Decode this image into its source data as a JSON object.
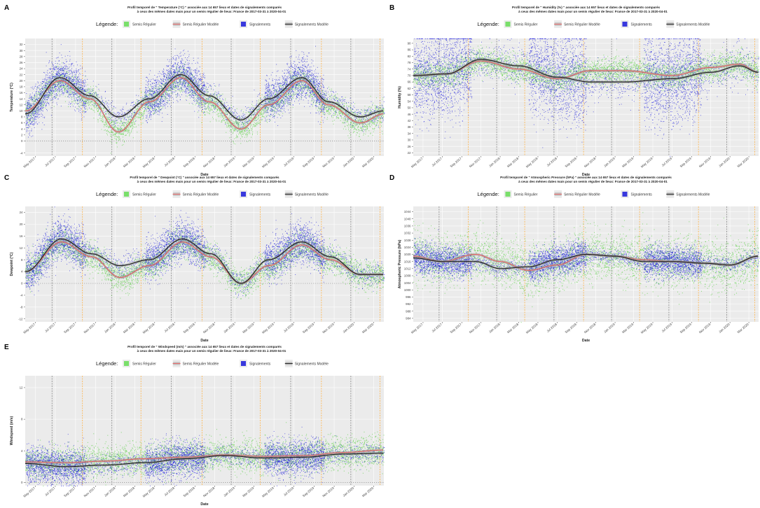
{
  "legend": {
    "title": "Légende:",
    "items": [
      {
        "label": "Semis Régulier",
        "color": "#66dd55"
      },
      {
        "label": "Semis Régulier Modèle",
        "color": "#e06666"
      },
      {
        "label": "Signalements",
        "color": "#1a1adb"
      },
      {
        "label": "Signalements Modèle",
        "color": "#222222"
      }
    ]
  },
  "axis_common": {
    "xlabel": "Date",
    "x_ticks": [
      "May 2017",
      "Jul 2017",
      "Sep 2017",
      "Nov 2017",
      "Jan 2018",
      "Mar 2018",
      "May 2018",
      "Jul 2018",
      "Sep 2018",
      "Nov 2018",
      "Jan 2019",
      "Mar 2019",
      "May 2019",
      "Jul 2019",
      "Sep 2019",
      "Nov 2019",
      "Jan 2020",
      "Mar 2020"
    ],
    "x_range": [
      "2017-03-31",
      "2020-04-01"
    ]
  },
  "chart_data": [
    {
      "panel": "A",
      "type": "scatter",
      "title": "Profil temporel de \" Temperature (°C) \" associée aux 14 657 lieux et dates de signalements comparés",
      "subtitle": "à ceux des mêmes dates mais pour un semis régulier de lieux: France de 2017-03-31 à 2020-04-01",
      "ylabel": "Temperature (°C)",
      "ylim": [
        -5,
        34
      ],
      "y_ticks": [
        -4,
        0,
        2,
        4,
        6,
        8,
        10,
        12,
        14,
        16,
        18,
        20,
        22,
        24,
        26,
        28,
        30,
        32
      ],
      "series": [
        {
          "name": "Semis Régulier Modèle",
          "x": [
            "2017-04-01",
            "2017-07-15",
            "2017-10-15",
            "2018-01-10",
            "2018-04-15",
            "2018-07-20",
            "2018-10-15",
            "2019-01-20",
            "2019-04-15",
            "2019-07-25",
            "2019-10-15",
            "2020-01-20",
            "2020-04-01"
          ],
          "y": [
            10,
            20,
            14,
            3,
            13,
            21,
            13,
            4,
            12,
            20,
            12,
            6,
            9
          ]
        },
        {
          "name": "Signalements Modèle",
          "x": [
            "2017-04-01",
            "2017-07-15",
            "2017-10-15",
            "2018-01-10",
            "2018-04-15",
            "2018-07-20",
            "2018-10-15",
            "2019-01-20",
            "2019-04-15",
            "2019-07-25",
            "2019-10-15",
            "2020-01-20",
            "2020-04-01"
          ],
          "y": [
            9,
            21,
            15,
            8,
            14,
            22,
            15,
            7,
            14,
            21,
            13,
            8,
            10
          ]
        }
      ]
    },
    {
      "panel": "B",
      "type": "scatter",
      "title": "Profil temporel de \" Humidity (%) \" associée aux 14 657 lieux et dates de signalements comparés",
      "subtitle": "à ceux des mêmes dates mais pour un semis régulier de lieux: France de 2017-03-31 à 2020-04-01",
      "ylabel": "Humidity (%)",
      "ylim": [
        20,
        93
      ],
      "y_ticks": [
        22,
        26,
        30,
        34,
        38,
        42,
        46,
        50,
        54,
        58,
        62,
        66,
        70,
        74,
        78,
        82,
        86,
        90
      ],
      "series": [
        {
          "name": "Semis Régulier Modèle",
          "x": [
            "2017-04-01",
            "2017-07-15",
            "2017-11-01",
            "2018-03-01",
            "2018-07-01",
            "2018-10-15",
            "2019-02-01",
            "2019-07-01",
            "2019-11-01",
            "2020-02-01",
            "2020-04-01"
          ],
          "y": [
            70,
            71,
            79,
            74,
            68,
            73,
            73,
            70,
            75,
            77,
            72
          ]
        },
        {
          "name": "Signalements Modèle",
          "x": [
            "2017-04-01",
            "2017-07-15",
            "2017-11-01",
            "2018-03-01",
            "2018-07-01",
            "2018-10-15",
            "2019-02-01",
            "2019-07-01",
            "2019-11-01",
            "2020-02-01",
            "2020-04-01"
          ],
          "y": [
            70,
            71,
            80,
            76,
            69,
            66,
            66,
            68,
            72,
            76,
            72
          ]
        }
      ]
    },
    {
      "panel": "C",
      "type": "scatter",
      "title": "Profil temporel de \" Dewpoint (°C) \" associée aux 14 657 lieux et dates de signalements comparés",
      "subtitle": "à ceux des mêmes dates mais pour un semis régulier de lieux: France de 2017-03-31 à 2020-04-01",
      "ylabel": "Dewpoint (°C)",
      "ylim": [
        -13,
        26
      ],
      "y_ticks": [
        -12,
        -8,
        -4,
        0,
        4,
        8,
        12,
        16,
        20,
        24
      ],
      "series": [
        {
          "name": "Semis Régulier Modèle",
          "x": [
            "2017-04-01",
            "2017-07-20",
            "2017-10-20",
            "2018-01-15",
            "2018-04-15",
            "2018-07-25",
            "2018-10-20",
            "2019-01-20",
            "2019-04-15",
            "2019-07-25",
            "2019-10-20",
            "2020-01-20",
            "2020-04-01"
          ],
          "y": [
            4,
            14,
            9,
            2,
            6,
            14,
            9,
            0,
            6,
            13,
            8,
            3,
            3
          ]
        },
        {
          "name": "Signalements Modèle",
          "x": [
            "2017-04-01",
            "2017-07-20",
            "2017-10-20",
            "2018-01-15",
            "2018-04-15",
            "2018-07-25",
            "2018-10-20",
            "2019-01-20",
            "2019-04-15",
            "2019-07-25",
            "2019-10-20",
            "2020-01-20",
            "2020-04-01"
          ],
          "y": [
            4,
            15,
            10,
            6,
            8,
            15,
            10,
            0,
            8,
            14,
            9,
            3,
            3
          ]
        }
      ]
    },
    {
      "panel": "D",
      "type": "scatter",
      "title": "Profil temporel de \" Atmospheric Pressure (hPa) \" associée aux 14 657 lieux et dates de signalements comparés",
      "subtitle": "à ceux des mêmes dates mais pour un semis régulier de lieux: France de 2017-03-31 à 2020-04-01",
      "ylabel": "Atmospheric Pressure (hPa)",
      "ylim": [
        982,
        1047
      ],
      "y_ticks": [
        984,
        988,
        992,
        996,
        1000,
        1004,
        1008,
        1012,
        1016,
        1020,
        1024,
        1028,
        1032,
        1036,
        1040,
        1044
      ],
      "series": [
        {
          "name": "Semis Régulier Modèle",
          "x": [
            "2017-04-01",
            "2017-07-01",
            "2017-10-15",
            "2018-01-01",
            "2018-04-01",
            "2018-07-01",
            "2018-10-01",
            "2019-01-01",
            "2019-04-01",
            "2019-07-01",
            "2019-10-15",
            "2020-01-01",
            "2020-04-01"
          ],
          "y": [
            1019,
            1016,
            1020,
            1016,
            1011,
            1014,
            1020,
            1019,
            1017,
            1016,
            1015,
            1014,
            1019
          ]
        },
        {
          "name": "Signalements Modèle",
          "x": [
            "2017-04-01",
            "2017-07-01",
            "2017-10-15",
            "2018-01-01",
            "2018-04-01",
            "2018-07-01",
            "2018-10-01",
            "2019-01-01",
            "2019-04-01",
            "2019-07-01",
            "2019-10-15",
            "2020-01-01",
            "2020-04-01"
          ],
          "y": [
            1018,
            1016,
            1016,
            1012,
            1013,
            1017,
            1020,
            1019,
            1016,
            1016,
            1015,
            1014,
            1019
          ]
        }
      ]
    },
    {
      "panel": "E",
      "type": "scatter",
      "title": "Profil temporel de \" Windspeed (m/s) \" associée aux 14 657 lieux et dates de signalements comparés",
      "subtitle": "à ceux des mêmes dates mais pour un semis régulier de lieux: France de 2017-03-31 à 2020-04-01",
      "ylabel": "Windspeed (m/s)",
      "ylim": [
        -0.4,
        13.5
      ],
      "y_ticks": [
        0,
        4,
        8,
        12
      ],
      "series": [
        {
          "name": "Semis Régulier Modèle",
          "x": [
            "2017-04-01",
            "2017-08-01",
            "2017-12-01",
            "2018-04-01",
            "2018-08-01",
            "2018-12-01",
            "2019-04-01",
            "2019-08-01",
            "2019-12-01",
            "2020-04-01"
          ],
          "y": [
            2.6,
            2.5,
            2.7,
            3.0,
            3.2,
            3.5,
            3.3,
            3.4,
            3.8,
            4.1
          ]
        },
        {
          "name": "Signalements Modèle",
          "x": [
            "2017-04-01",
            "2017-08-01",
            "2017-12-01",
            "2018-04-01",
            "2018-08-01",
            "2018-12-01",
            "2019-04-01",
            "2019-08-01",
            "2019-12-01",
            "2020-04-01"
          ],
          "y": [
            2.4,
            2.0,
            2.2,
            2.5,
            3.0,
            3.4,
            3.1,
            3.2,
            3.6,
            3.7
          ]
        }
      ]
    }
  ]
}
